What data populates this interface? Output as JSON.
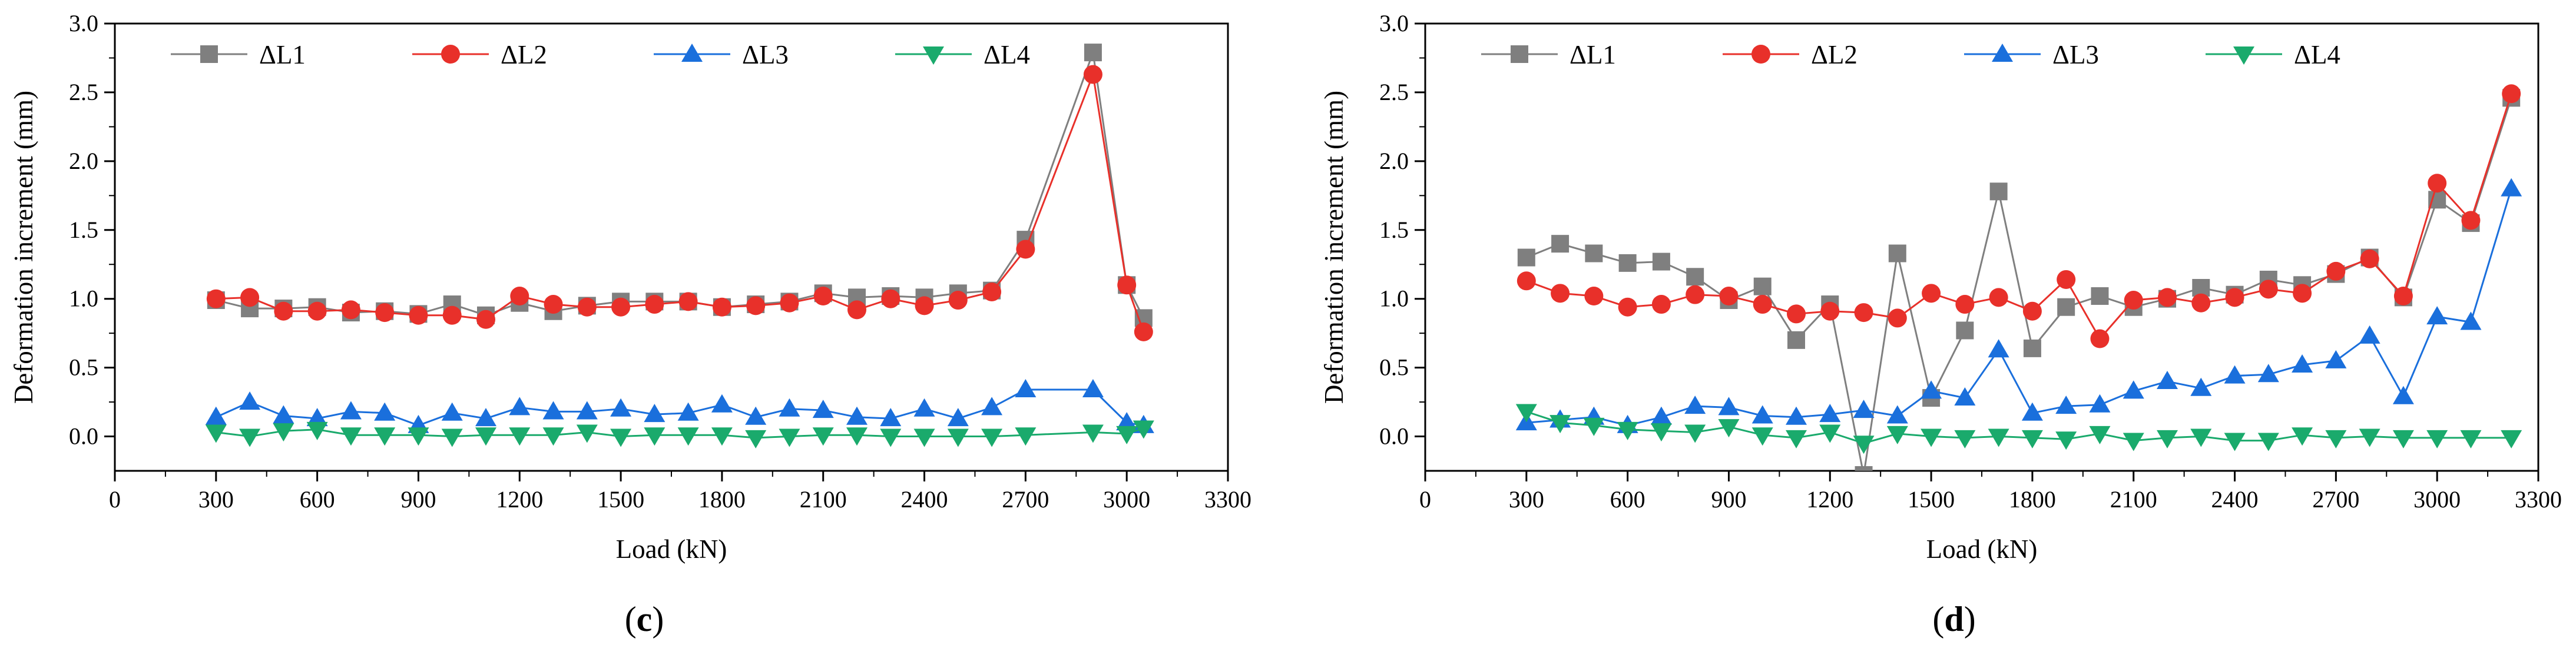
{
  "chart_data": [
    {
      "type": "line",
      "panel_label": "c",
      "xlabel": "Load (kN)",
      "ylabel": "Deformation increment (mm)",
      "xlim": [
        0,
        3300
      ],
      "ylim": [
        -0.25,
        3.0
      ],
      "xticks": [
        0,
        300,
        600,
        900,
        1200,
        1500,
        1800,
        2100,
        2400,
        2700,
        3000,
        3300
      ],
      "yticks": [
        0.0,
        0.5,
        1.0,
        1.5,
        2.0,
        2.5,
        3.0
      ],
      "legend_position": "top",
      "series": [
        {
          "name": "ΔL1",
          "color": "#7f7f7f",
          "marker": "square",
          "x": [
            300,
            400,
            500,
            600,
            700,
            800,
            900,
            1000,
            1100,
            1200,
            1300,
            1400,
            1500,
            1600,
            1700,
            1800,
            1900,
            2000,
            2100,
            2200,
            2300,
            2400,
            2500,
            2600,
            2700,
            2900,
            3000,
            3050
          ],
          "y": [
            0.99,
            0.93,
            0.93,
            0.94,
            0.9,
            0.91,
            0.89,
            0.96,
            0.88,
            0.97,
            0.91,
            0.95,
            0.98,
            0.98,
            0.98,
            0.94,
            0.96,
            0.98,
            1.04,
            1.01,
            1.02,
            1.01,
            1.04,
            1.06,
            1.43,
            2.79,
            1.1,
            0.86
          ]
        },
        {
          "name": "ΔL2",
          "color": "#e8302a",
          "marker": "circle",
          "x": [
            300,
            400,
            500,
            600,
            700,
            800,
            900,
            1000,
            1100,
            1200,
            1300,
            1400,
            1500,
            1600,
            1700,
            1800,
            1900,
            2000,
            2100,
            2200,
            2300,
            2400,
            2500,
            2600,
            2700,
            2900,
            3000,
            3050
          ],
          "y": [
            1.0,
            1.01,
            0.91,
            0.91,
            0.92,
            0.9,
            0.88,
            0.88,
            0.85,
            1.02,
            0.96,
            0.94,
            0.94,
            0.96,
            0.98,
            0.94,
            0.95,
            0.97,
            1.02,
            0.92,
            1.0,
            0.95,
            0.99,
            1.05,
            1.36,
            2.63,
            1.1,
            0.76
          ]
        },
        {
          "name": "ΔL3",
          "color": "#1a6fdc",
          "marker": "triangle-up",
          "x": [
            300,
            400,
            500,
            600,
            700,
            800,
            900,
            1000,
            1100,
            1200,
            1300,
            1400,
            1500,
            1600,
            1700,
            1800,
            1900,
            2000,
            2100,
            2200,
            2300,
            2400,
            2500,
            2600,
            2700,
            2900,
            3000,
            3050
          ],
          "y": [
            0.14,
            0.25,
            0.15,
            0.13,
            0.18,
            0.17,
            0.08,
            0.17,
            0.13,
            0.21,
            0.18,
            0.18,
            0.2,
            0.16,
            0.17,
            0.23,
            0.14,
            0.2,
            0.19,
            0.14,
            0.13,
            0.2,
            0.13,
            0.21,
            0.34,
            0.34,
            0.1,
            0.08
          ]
        },
        {
          "name": "ΔL4",
          "color": "#1aaa6c",
          "marker": "triangle-down",
          "x": [
            300,
            400,
            500,
            600,
            700,
            800,
            900,
            1000,
            1100,
            1200,
            1300,
            1400,
            1500,
            1600,
            1700,
            1800,
            1900,
            2000,
            2100,
            2200,
            2300,
            2400,
            2500,
            2600,
            2700,
            2900,
            3000,
            3050
          ],
          "y": [
            0.03,
            0.0,
            0.04,
            0.05,
            0.01,
            0.01,
            0.01,
            0.0,
            0.01,
            0.01,
            0.01,
            0.03,
            0.0,
            0.01,
            0.01,
            0.01,
            -0.01,
            0.0,
            0.01,
            0.01,
            0.0,
            0.0,
            0.0,
            0.0,
            0.01,
            0.03,
            0.02,
            0.06
          ]
        }
      ]
    },
    {
      "type": "line",
      "panel_label": "d",
      "xlabel": "Load (kN)",
      "ylabel": "Deformation increment (mm)",
      "xlim": [
        0,
        3300
      ],
      "ylim": [
        -0.25,
        3.0
      ],
      "xticks": [
        0,
        300,
        600,
        900,
        1200,
        1500,
        1800,
        2100,
        2400,
        2700,
        3000,
        3300
      ],
      "yticks": [
        0.0,
        0.5,
        1.0,
        1.5,
        2.0,
        2.5,
        3.0
      ],
      "legend_position": "top",
      "series": [
        {
          "name": "ΔL1",
          "color": "#7f7f7f",
          "marker": "square",
          "x": [
            300,
            400,
            500,
            600,
            700,
            800,
            900,
            1000,
            1100,
            1200,
            1300,
            1400,
            1500,
            1600,
            1700,
            1800,
            1900,
            2000,
            2100,
            2200,
            2300,
            2400,
            2500,
            2600,
            2700,
            2800,
            2900,
            3000,
            3100,
            3220
          ],
          "y": [
            1.3,
            1.4,
            1.33,
            1.26,
            1.27,
            1.16,
            0.99,
            1.09,
            0.7,
            0.96,
            -0.28,
            1.33,
            0.28,
            0.77,
            1.78,
            0.64,
            0.94,
            1.02,
            0.94,
            1.0,
            1.08,
            1.03,
            1.14,
            1.1,
            1.18,
            1.3,
            1.01,
            1.72,
            1.55,
            2.46
          ]
        },
        {
          "name": "ΔL2",
          "color": "#e8302a",
          "marker": "circle",
          "x": [
            300,
            400,
            500,
            600,
            700,
            800,
            900,
            1000,
            1100,
            1200,
            1300,
            1400,
            1500,
            1600,
            1700,
            1800,
            1900,
            2000,
            2100,
            2200,
            2300,
            2400,
            2500,
            2600,
            2700,
            2800,
            2900,
            3000,
            3100,
            3220
          ],
          "y": [
            1.13,
            1.04,
            1.02,
            0.94,
            0.96,
            1.03,
            1.02,
            0.96,
            0.89,
            0.91,
            0.9,
            0.86,
            1.04,
            0.96,
            1.01,
            0.91,
            1.14,
            0.71,
            0.99,
            1.01,
            0.97,
            1.01,
            1.07,
            1.04,
            1.2,
            1.29,
            1.02,
            1.84,
            1.57,
            2.49
          ]
        },
        {
          "name": "ΔL3",
          "color": "#1a6fdc",
          "marker": "triangle-up",
          "x": [
            300,
            400,
            500,
            600,
            700,
            800,
            900,
            1000,
            1100,
            1200,
            1300,
            1400,
            1500,
            1600,
            1700,
            1800,
            1900,
            2000,
            2100,
            2200,
            2300,
            2400,
            2500,
            2600,
            2700,
            2800,
            2900,
            3000,
            3100,
            3220
          ],
          "y": [
            0.1,
            0.12,
            0.14,
            0.08,
            0.14,
            0.22,
            0.21,
            0.15,
            0.14,
            0.16,
            0.19,
            0.15,
            0.33,
            0.28,
            0.63,
            0.17,
            0.22,
            0.23,
            0.33,
            0.4,
            0.35,
            0.44,
            0.45,
            0.52,
            0.55,
            0.73,
            0.29,
            0.87,
            0.83,
            1.8
          ]
        },
        {
          "name": "ΔL4",
          "color": "#1aaa6c",
          "marker": "triangle-down",
          "x": [
            300,
            400,
            500,
            600,
            700,
            800,
            900,
            1000,
            1100,
            1200,
            1300,
            1400,
            1500,
            1600,
            1700,
            1800,
            1900,
            2000,
            2100,
            2200,
            2300,
            2400,
            2500,
            2600,
            2700,
            2800,
            2900,
            3000,
            3100,
            3220
          ],
          "y": [
            0.18,
            0.1,
            0.08,
            0.05,
            0.04,
            0.03,
            0.07,
            0.01,
            -0.01,
            0.03,
            -0.05,
            0.02,
            0.0,
            -0.01,
            0.0,
            -0.01,
            -0.02,
            0.02,
            -0.03,
            -0.01,
            0.0,
            -0.03,
            -0.03,
            0.01,
            -0.01,
            0.0,
            -0.01,
            -0.01,
            -0.01,
            -0.01
          ]
        }
      ]
    }
  ]
}
